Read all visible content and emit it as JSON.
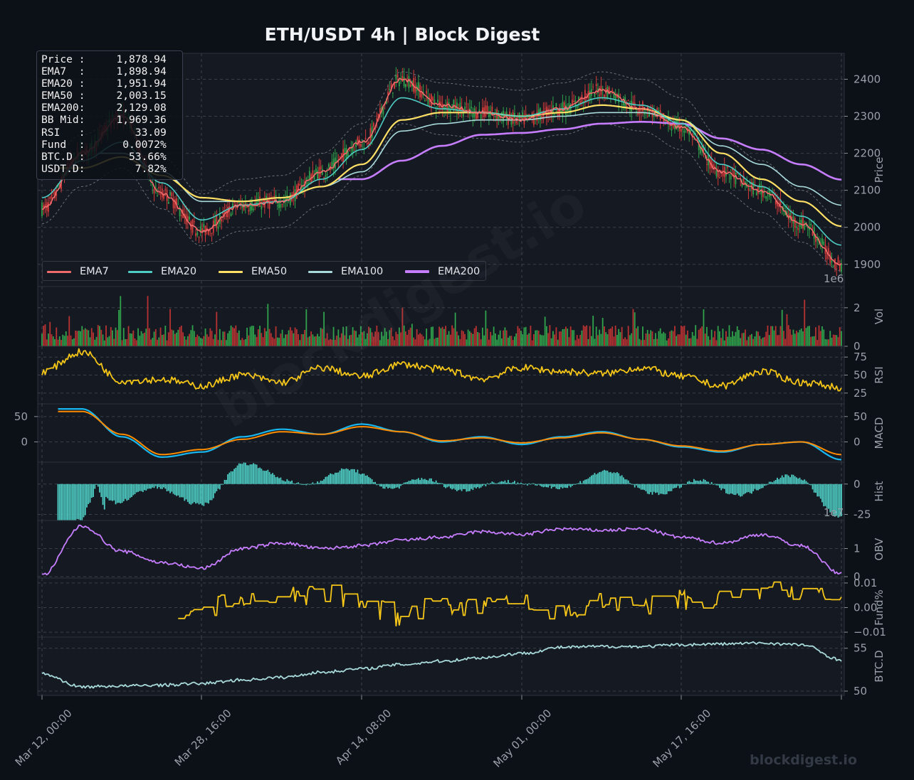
{
  "title": "ETH/USDT  4h  |  Block Digest",
  "watermark": "blockdigest.io",
  "info_box": [
    {
      "label": "Price :",
      "value": "1,878.94"
    },
    {
      "label": "EMA7  :",
      "value": "1,898.94"
    },
    {
      "label": "EMA20 :",
      "value": "1,951.94"
    },
    {
      "label": "EMA50 :",
      "value": "2,003.15"
    },
    {
      "label": "EMA200:",
      "value": "2,129.08"
    },
    {
      "label": "BB Mid:",
      "value": "1,969.36"
    },
    {
      "label": "RSI   :",
      "value": "33.09"
    },
    {
      "label": "Fund  :",
      "value": "0.0072%"
    },
    {
      "label": "BTC.D :",
      "value": "53.66%"
    },
    {
      "label": "USDT.D:",
      "value": "7.82%"
    }
  ],
  "legend": [
    {
      "name": "EMA7",
      "color": "#f06c6c"
    },
    {
      "name": "EMA20",
      "color": "#4ecdc4"
    },
    {
      "name": "EMA50",
      "color": "#ffe066"
    },
    {
      "name": "EMA100",
      "color": "#a8dadc"
    },
    {
      "name": "EMA200",
      "color": "#c77dff"
    }
  ],
  "x_ticks": [
    "Mar 12, 00:00",
    "Mar 28, 16:00",
    "Apr 14, 08:00",
    "May 01, 00:00",
    "May 17, 16:00"
  ],
  "sci_labels": {
    "vol": "1e6",
    "obv": "1e7"
  },
  "chart_data": [
    {
      "panel": "price",
      "type": "line",
      "ylabel": "Price",
      "ylim": [
        1840,
        2470
      ],
      "yticks": [
        1900,
        2000,
        2100,
        2200,
        2300,
        2400
      ],
      "x": [
        "Mar 12",
        "Mar 16",
        "Mar 20",
        "Mar 24",
        "Mar 28",
        "Apr 01",
        "Apr 05",
        "Apr 09",
        "Apr 13",
        "Apr 17",
        "Apr 21",
        "Apr 25",
        "Apr 29",
        "May 03",
        "May 07",
        "May 11",
        "May 15",
        "May 19",
        "May 23",
        "May 27",
        "May 31"
      ],
      "series": [
        {
          "name": "EMA7",
          "color": "#f06c6c",
          "values": [
            2050,
            2200,
            2300,
            2090,
            1990,
            2060,
            2070,
            2150,
            2230,
            2400,
            2330,
            2310,
            2290,
            2320,
            2370,
            2320,
            2270,
            2150,
            2100,
            2010,
            1899
          ]
        },
        {
          "name": "EMA20",
          "color": "#4ecdc4",
          "values": [
            2080,
            2180,
            2230,
            2120,
            2020,
            2060,
            2070,
            2130,
            2210,
            2350,
            2320,
            2310,
            2300,
            2320,
            2350,
            2330,
            2280,
            2170,
            2110,
            2030,
            1952
          ]
        },
        {
          "name": "EMA50",
          "color": "#ffe066",
          "values": [
            null,
            2160,
            2190,
            2140,
            2080,
            2070,
            2080,
            2110,
            2170,
            2290,
            2310,
            2310,
            2300,
            2310,
            2330,
            2320,
            2290,
            2200,
            2130,
            2070,
            2003
          ]
        },
        {
          "name": "EMA100",
          "color": "#a8dadc",
          "values": [
            null,
            null,
            2200,
            2150,
            2070,
            2070,
            2080,
            2110,
            2150,
            2260,
            2280,
            2290,
            2290,
            2300,
            2310,
            2310,
            2290,
            2220,
            2170,
            2110,
            2060
          ]
        },
        {
          "name": "EMA200",
          "color": "#c77dff",
          "values": [
            null,
            null,
            null,
            null,
            null,
            null,
            null,
            null,
            2130,
            2180,
            2220,
            2250,
            2255,
            2265,
            2280,
            2285,
            2280,
            2240,
            2210,
            2170,
            2129
          ]
        }
      ]
    },
    {
      "panel": "volume",
      "type": "bar",
      "ylabel": "Vol",
      "ylim": [
        0,
        3.1
      ],
      "yticks": [
        0,
        2
      ],
      "unit_scale": "1e6"
    },
    {
      "panel": "rsi",
      "type": "line",
      "ylabel": "RSI",
      "ylim": [
        10,
        90
      ],
      "yticks": [
        25,
        50,
        75
      ],
      "series": [
        {
          "name": "RSI",
          "color": "#f5c518",
          "values": [
            55,
            82,
            42,
            44,
            35,
            50,
            40,
            60,
            48,
            65,
            58,
            45,
            60,
            55,
            52,
            60,
            48,
            35,
            55,
            40,
            33.09
          ]
        }
      ]
    },
    {
      "panel": "macd",
      "type": "line",
      "ylabel": "MACD",
      "ylim": [
        -40,
        75
      ],
      "yticks": [
        0,
        50
      ],
      "series": [
        {
          "name": "MACD",
          "color": "#19b7f0",
          "values": [
            null,
            65,
            10,
            -30,
            -20,
            10,
            25,
            15,
            35,
            20,
            0,
            10,
            -5,
            10,
            20,
            5,
            -10,
            -20,
            -5,
            0,
            -35
          ]
        },
        {
          "name": "Signal",
          "color": "#ff8c00",
          "values": [
            null,
            60,
            15,
            -25,
            -15,
            5,
            20,
            15,
            30,
            20,
            2,
            8,
            -2,
            8,
            18,
            5,
            -8,
            -18,
            -5,
            0,
            -25
          ]
        }
      ]
    },
    {
      "panel": "hist",
      "type": "bar",
      "ylabel": "Hist",
      "ylim": [
        -30,
        18
      ],
      "yticks": [
        -25,
        0
      ]
    },
    {
      "panel": "obv",
      "type": "line",
      "ylabel": "OBV",
      "ylim": [
        -0.05,
        2.0
      ],
      "yticks": [
        0,
        1
      ],
      "unit_scale": "1e7",
      "series": [
        {
          "name": "OBV",
          "color": "#c77dff",
          "values": [
            0.05,
            1.8,
            0.9,
            0.5,
            0.3,
            1.0,
            1.2,
            1.0,
            1.1,
            1.3,
            1.4,
            1.6,
            1.5,
            1.7,
            1.65,
            1.7,
            1.4,
            1.2,
            1.5,
            1.1,
            0.1
          ]
        }
      ]
    },
    {
      "panel": "funding",
      "type": "line",
      "ylabel": "Fund%",
      "ylim": [
        -0.012,
        0.012
      ],
      "yticks": [
        -0.01,
        0.0,
        0.01
      ],
      "ytick_labels": [
        "−0.01",
        "0.00",
        "0.01"
      ],
      "series": [
        {
          "name": "Funding",
          "color": "#f5c518",
          "values": [
            null,
            null,
            null,
            null,
            0.0,
            0.002,
            0.004,
            0.006,
            0.002,
            -0.004,
            0.002,
            0.0,
            0.003,
            -0.002,
            0.002,
            0.0,
            0.003,
            0.004,
            0.006,
            0.007,
            0.0072
          ]
        }
      ]
    },
    {
      "panel": "btcd",
      "type": "line",
      "ylabel": "BTC.D",
      "ylim": [
        49.5,
        56.3
      ],
      "yticks": [
        50,
        55
      ],
      "series": [
        {
          "name": "BTC.D",
          "color": "#a8dadc",
          "values": [
            52.0,
            50.5,
            50.6,
            50.7,
            50.9,
            51.3,
            51.6,
            52.2,
            52.6,
            53.1,
            53.5,
            53.9,
            54.4,
            55.1,
            55.2,
            55.2,
            55.4,
            55.5,
            55.6,
            55.4,
            53.66
          ]
        }
      ]
    }
  ]
}
